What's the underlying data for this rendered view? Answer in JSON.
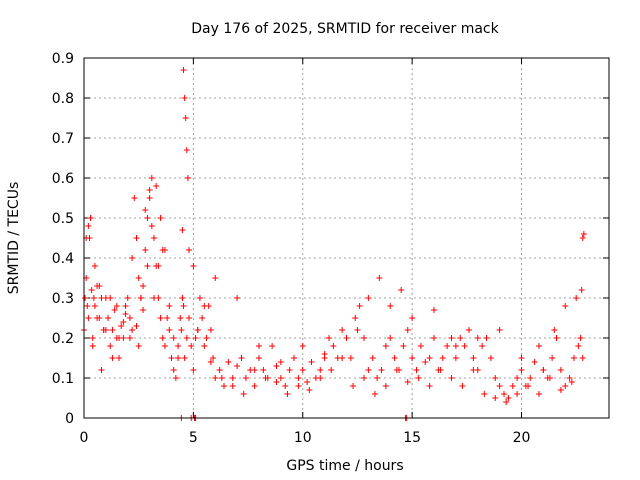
{
  "chart_data": {
    "type": "scatter",
    "title": "Day 176 of 2025, SRMTID for receiver mack",
    "xlabel": "GPS time / hours",
    "ylabel": "SRMTID / TECUs",
    "xlim": [
      0,
      24
    ],
    "ylim": [
      0,
      0.9
    ],
    "xticks": [
      0,
      5,
      10,
      15,
      20
    ],
    "xtick_labels": [
      "0",
      "5",
      "10",
      "15",
      "20"
    ],
    "yticks": [
      0,
      0.1,
      0.2,
      0.3,
      0.4,
      0.5,
      0.6,
      0.7,
      0.8,
      0.9
    ],
    "ytick_labels": [
      "0",
      "0.1",
      "0.2",
      "0.3",
      "0.4",
      "0.5",
      "0.6",
      "0.7",
      "0.8",
      "0.9"
    ],
    "grid": true,
    "marker": "+",
    "color": "#ff0000",
    "series": [
      {
        "name": "SRMTID",
        "x": [
          0.0,
          0.05,
          0.1,
          0.15,
          0.2,
          0.25,
          0.3,
          0.35,
          0.4,
          0.45,
          0.5,
          0.6,
          0.7,
          0.8,
          0.9,
          1.0,
          1.1,
          1.2,
          1.3,
          1.4,
          1.5,
          1.6,
          1.7,
          1.8,
          1.9,
          2.0,
          2.1,
          2.2,
          2.3,
          2.4,
          2.5,
          2.6,
          2.7,
          2.8,
          2.9,
          3.0,
          3.1,
          3.2,
          3.3,
          3.4,
          3.5,
          3.6,
          3.7,
          3.8,
          3.9,
          4.0,
          4.1,
          4.2,
          4.3,
          4.4,
          4.45,
          4.5,
          4.55,
          4.6,
          4.7,
          4.8,
          4.9,
          5.0,
          5.1,
          5.2,
          5.3,
          5.4,
          5.5,
          5.6,
          5.7,
          5.8,
          5.9,
          6.0,
          6.2,
          6.4,
          6.6,
          6.8,
          7.0,
          7.2,
          7.4,
          7.6,
          7.8,
          8.0,
          8.2,
          8.4,
          8.6,
          8.8,
          9.0,
          9.2,
          9.4,
          9.6,
          9.8,
          10.0,
          10.2,
          10.4,
          10.6,
          10.8,
          11.0,
          11.2,
          11.4,
          11.6,
          11.8,
          12.0,
          12.2,
          12.4,
          12.6,
          12.8,
          13.0,
          13.2,
          13.4,
          13.6,
          13.8,
          14.0,
          14.2,
          14.4,
          14.6,
          14.8,
          15.0,
          15.2,
          15.4,
          15.6,
          15.8,
          16.0,
          16.2,
          16.4,
          16.6,
          16.8,
          17.0,
          17.2,
          17.4,
          17.6,
          17.8,
          18.0,
          18.2,
          18.4,
          18.6,
          18.8,
          19.0,
          19.2,
          19.4,
          19.6,
          19.8,
          20.0,
          20.2,
          20.4,
          20.6,
          20.8,
          21.0,
          21.2,
          21.4,
          21.6,
          21.8,
          22.0,
          22.2,
          22.4,
          22.6,
          22.7,
          22.8,
          0.1,
          0.3,
          0.5,
          0.7,
          0.9,
          1.2,
          1.5,
          1.8,
          2.1,
          2.4,
          2.6,
          2.8,
          3.0,
          3.2,
          3.4,
          3.6,
          4.5,
          4.55,
          4.6,
          4.65,
          4.7,
          4.75,
          4.8,
          5.0,
          5.5,
          6.0,
          7.0,
          8.0,
          9.0,
          10.0,
          11.0,
          12.0,
          12.5,
          13.0,
          13.5,
          14.0,
          14.5,
          15.0,
          16.0,
          17.0,
          18.0,
          19.0,
          20.0,
          21.0,
          21.5,
          22.0,
          22.5,
          22.75,
          22.8,
          22.85,
          0.2,
          0.4,
          0.6,
          0.8,
          1.0,
          1.3,
          1.6,
          1.9,
          2.2,
          2.5,
          2.7,
          2.9,
          3.1,
          3.3,
          3.5,
          3.7,
          3.9,
          4.1,
          4.3,
          5.2,
          5.8,
          6.3,
          6.8,
          7.3,
          7.8,
          8.3,
          8.8,
          9.3,
          9.8,
          10.3,
          10.8,
          11.3,
          11.8,
          12.3,
          12.8,
          13.3,
          13.8,
          14.3,
          14.8,
          15.3,
          15.8,
          16.3,
          16.8,
          17.3,
          17.8,
          18.3,
          18.8,
          19.3,
          19.8,
          20.3,
          20.8,
          21.3,
          21.8,
          22.3,
          4.45,
          4.9,
          5.05,
          5.1,
          14.7,
          14.75
        ],
        "y": [
          0.22,
          0.3,
          0.35,
          0.28,
          0.25,
          0.45,
          0.5,
          0.32,
          0.2,
          0.3,
          0.28,
          0.33,
          0.25,
          0.12,
          0.22,
          0.3,
          0.25,
          0.18,
          0.22,
          0.27,
          0.2,
          0.15,
          0.23,
          0.2,
          0.28,
          0.3,
          0.25,
          0.4,
          0.55,
          0.45,
          0.35,
          0.3,
          0.33,
          0.42,
          0.5,
          0.55,
          0.6,
          0.45,
          0.38,
          0.3,
          0.25,
          0.2,
          0.18,
          0.25,
          0.22,
          0.15,
          0.12,
          0.1,
          0.18,
          0.25,
          0.22,
          0.3,
          0.28,
          0.15,
          0.2,
          0.25,
          0.18,
          0.12,
          0.2,
          0.22,
          0.3,
          0.25,
          0.18,
          0.2,
          0.28,
          0.22,
          0.15,
          0.1,
          0.12,
          0.08,
          0.14,
          0.1,
          0.13,
          0.15,
          0.1,
          0.12,
          0.08,
          0.15,
          0.12,
          0.1,
          0.18,
          0.13,
          0.1,
          0.08,
          0.12,
          0.15,
          0.1,
          0.12,
          0.09,
          0.14,
          0.1,
          0.12,
          0.15,
          0.2,
          0.18,
          0.15,
          0.22,
          0.2,
          0.15,
          0.25,
          0.28,
          0.2,
          0.12,
          0.15,
          0.1,
          0.12,
          0.18,
          0.2,
          0.15,
          0.12,
          0.18,
          0.22,
          0.15,
          0.12,
          0.18,
          0.14,
          0.15,
          0.2,
          0.12,
          0.15,
          0.18,
          0.2,
          0.15,
          0.2,
          0.18,
          0.22,
          0.15,
          0.12,
          0.18,
          0.2,
          0.15,
          0.1,
          0.08,
          0.06,
          0.05,
          0.08,
          0.1,
          0.12,
          0.08,
          0.1,
          0.14,
          0.18,
          0.12,
          0.1,
          0.15,
          0.2,
          0.12,
          0.08,
          0.1,
          0.15,
          0.18,
          0.2,
          0.15,
          0.45,
          0.5,
          0.38,
          0.33,
          0.22,
          0.3,
          0.28,
          0.24,
          0.2,
          0.23,
          0.3,
          0.52,
          0.57,
          0.3,
          0.38,
          0.42,
          0.47,
          0.87,
          0.8,
          0.75,
          0.67,
          0.6,
          0.42,
          0.38,
          0.28,
          0.35,
          0.3,
          0.18,
          0.14,
          0.18,
          0.16,
          0.2,
          0.22,
          0.3,
          0.35,
          0.28,
          0.32,
          0.25,
          0.27,
          0.18,
          0.2,
          0.22,
          0.15,
          0.12,
          0.22,
          0.28,
          0.3,
          0.32,
          0.45,
          0.46,
          0.48,
          0.18,
          0.25,
          0.3,
          0.22,
          0.15,
          0.2,
          0.26,
          0.22,
          0.18,
          0.27,
          0.38,
          0.48,
          0.58,
          0.5,
          0.42,
          0.28,
          0.2,
          0.15,
          0.22,
          0.14,
          0.1,
          0.08,
          0.06,
          0.12,
          0.1,
          0.09,
          0.06,
          0.08,
          0.07,
          0.1,
          0.12,
          0.15,
          0.08,
          0.1,
          0.06,
          0.08,
          0.12,
          0.09,
          0.1,
          0.08,
          0.12,
          0.1,
          0.08,
          0.12,
          0.06,
          0.05,
          0.04,
          0.06,
          0.08,
          0.06,
          0.1,
          0.07,
          0.09,
          0.0,
          0.0,
          0.0,
          0.0,
          0.0,
          0.0
        ]
      }
    ]
  }
}
